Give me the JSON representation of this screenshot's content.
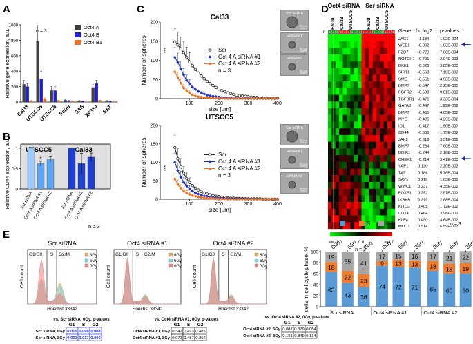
{
  "panelA": {
    "letter": "A",
    "n_label": "n = 3",
    "ylabel": "Relative gene expression, a.u.",
    "ylim": [
      0,
      1000
    ],
    "yticks": [
      "0",
      "200",
      "400",
      "600",
      "800",
      "1000"
    ],
    "chart_data": {
      "type": "bar",
      "categories": [
        "Cal33",
        "UTSCC5",
        "UTSCC8",
        "FaDu",
        "SAS",
        "XF354",
        "SAT"
      ],
      "series": [
        {
          "name": "Oct4 A",
          "color": "#404040",
          "values": [
            230,
            790,
            150,
            25,
            15,
            190,
            15
          ],
          "errors": [
            50,
            200,
            50,
            10,
            5,
            40,
            5
          ]
        },
        {
          "name": "Oct4 B",
          "color": "#1f1fd0",
          "values": [
            200,
            300,
            150,
            15,
            10,
            240,
            10
          ],
          "errors": [
            40,
            100,
            50,
            5,
            5,
            40,
            5
          ]
        },
        {
          "name": "Oct4 B1",
          "color": "#f07020",
          "values": [
            15,
            40,
            20,
            10,
            5,
            20,
            5
          ],
          "errors": [
            5,
            15,
            5,
            5,
            5,
            5,
            5
          ]
        }
      ]
    }
  },
  "panelB": {
    "letter": "B",
    "ylabel": "Relative CD44 expression, a.u.",
    "n_label": "n ≥ 3",
    "groups": [
      "UTSCC5",
      "Cal33"
    ],
    "yticks": [
      "0",
      "0.5",
      "1"
    ],
    "chart_data": {
      "type": "bar",
      "categories": [
        "Scr siRNA",
        "Oct4 A siRNA #1",
        "Oct4 A siRNA #2",
        "Scr siRNA",
        "Oct4 A siRNA #1",
        "Oct4 A siRNA #2"
      ],
      "values": [
        1.0,
        0.62,
        0.73,
        1.0,
        0.62,
        0.78
      ],
      "errors": [
        0.0,
        0.06,
        0.06,
        0.0,
        0.25,
        0.1
      ],
      "colors": [
        "#9ecbff",
        "#5aa6f2",
        "#5aa6f2",
        "#1f3fd0",
        "#1f3fd0",
        "#1f3fd0"
      ],
      "significance": [
        "",
        "*",
        "",
        "",
        "*",
        "*"
      ],
      "ylim": [
        0,
        1.1
      ]
    }
  },
  "panelC": {
    "letter": "C",
    "plots": [
      {
        "title": "Cal33",
        "ylabel": "Number of spheres",
        "xlabel": "size [µm]",
        "n_label": "n = 3",
        "sig": "***",
        "ylim": [
          0,
          200
        ],
        "yticks": [
          "0",
          "50",
          "100",
          "150",
          "200"
        ],
        "xticks": [
          "100",
          "200",
          "300",
          "400"
        ],
        "legend": [
          "Scr",
          "Oct 4 A siRNA #1",
          "Oct 4 A siRNA #2"
        ],
        "chart_data": {
          "type": "line",
          "x": [
            50,
            60,
            70,
            80,
            90,
            100,
            110,
            120,
            130,
            140,
            150,
            160,
            170,
            180,
            190,
            200,
            210,
            220,
            230,
            240,
            250,
            260,
            270,
            280,
            290,
            300,
            310,
            320,
            330,
            340,
            350,
            360,
            370,
            380,
            390,
            400
          ],
          "series": [
            {
              "name": "Scr",
              "color": "#222222",
              "values": [
                148,
                140,
                130,
                120,
                108,
                96,
                86,
                76,
                67,
                59,
                52,
                45,
                39,
                34,
                29,
                25,
                21,
                18,
                15,
                13,
                11,
                9,
                8,
                7,
                6,
                5,
                4,
                3,
                3,
                2,
                2,
                2,
                1,
                1,
                1,
                1
              ]
            },
            {
              "name": "Oct 4 A siRNA #1",
              "color": "#1f2fd0",
              "values": [
                108,
                95,
                78,
                62,
                48,
                38,
                30,
                24,
                19,
                15,
                12,
                9,
                7,
                6,
                5,
                4,
                3,
                2,
                2,
                2,
                1,
                1,
                1,
                1,
                1,
                1,
                0,
                0,
                0,
                0,
                0,
                0,
                0,
                0,
                0,
                0
              ]
            },
            {
              "name": "Oct 4 A siRNA #2",
              "color": "#f07020",
              "values": [
                70,
                55,
                40,
                28,
                20,
                14,
                10,
                7,
                5,
                4,
                3,
                2,
                2,
                1,
                1,
                1,
                1,
                0,
                0,
                0,
                0,
                0,
                0,
                0,
                0,
                0,
                0,
                0,
                0,
                0,
                0,
                0,
                0,
                0,
                0,
                0
              ]
            }
          ]
        },
        "images": [
          "Scr siRNA",
          "siRNA #1",
          "siRNA #2"
        ],
        "scale": "50 µm"
      },
      {
        "title": "UTSCC5",
        "ylabel": "Number of spheres",
        "xlabel": "size [µm]",
        "n_label": "n = 3",
        "sig": "***",
        "ylim": [
          0,
          200
        ],
        "yticks": [
          "0",
          "50",
          "100",
          "150",
          "200"
        ],
        "xticks": [
          "100",
          "200",
          "300",
          "400"
        ],
        "legend": [
          "Scr",
          "Oct 4 A siRNA #1",
          "Oct 4 A siRNA #2"
        ],
        "chart_data": {
          "type": "line",
          "x": [
            50,
            60,
            70,
            80,
            90,
            100,
            110,
            120,
            130,
            140,
            150,
            160,
            170,
            180,
            190,
            200,
            210,
            220,
            230,
            240,
            250,
            260,
            270,
            280,
            290,
            300,
            310,
            320,
            330,
            340,
            350,
            360,
            370,
            380,
            390,
            400
          ],
          "series": [
            {
              "name": "Scr",
              "color": "#222222",
              "values": [
                140,
                110,
                88,
                70,
                56,
                45,
                37,
                30,
                25,
                21,
                17,
                14,
                12,
                10,
                8,
                7,
                6,
                5,
                4,
                3,
                3,
                2,
                2,
                2,
                1,
                1,
                1,
                1,
                1,
                1,
                0,
                0,
                0,
                0,
                0,
                0
              ]
            },
            {
              "name": "Oct 4 A siRNA #1",
              "color": "#1f2fd0",
              "values": [
                100,
                78,
                60,
                46,
                36,
                28,
                22,
                17,
                14,
                11,
                9,
                7,
                6,
                5,
                4,
                3,
                3,
                2,
                2,
                1,
                1,
                1,
                1,
                1,
                1,
                0,
                0,
                0,
                0,
                0,
                0,
                0,
                0,
                0,
                0,
                0
              ]
            },
            {
              "name": "Oct 4 A siRNA #2",
              "color": "#f07020",
              "values": [
                55,
                40,
                30,
                22,
                17,
                13,
                10,
                8,
                6,
                5,
                4,
                3,
                2,
                2,
                1,
                1,
                1,
                1,
                0,
                0,
                0,
                0,
                0,
                0,
                0,
                0,
                0,
                0,
                0,
                0,
                0,
                0,
                0,
                0,
                0,
                0
              ]
            }
          ]
        },
        "images": [
          "Scr siRNA",
          "siRNA #1",
          "siRNA #2"
        ],
        "scale": "50 µm"
      }
    ]
  },
  "panelD": {
    "letter": "D",
    "header1": "Oct4 siRNA",
    "header2": "Scr siRNA",
    "cols": [
      "FaDu",
      "Cal33",
      "UTSCC5",
      "FaDu",
      "Cal33",
      "UTSCC5"
    ],
    "rep_label": "n",
    "col_headers": [
      "Gene",
      "f.c.log2",
      "p-values"
    ],
    "genes": [
      {
        "gene": "JAG1",
        "fc": "-1.184",
        "p": "1.02E-004"
      },
      {
        "gene": "WEE1",
        "fc": "-0.892",
        "p": "1.83E-003",
        "arrow": true
      },
      {
        "gene": "FZD7",
        "fc": "-0.723",
        "p": "7.66E-004"
      },
      {
        "gene": "NOTCH1",
        "fc": "-0.701",
        "p": "2.04E-003"
      },
      {
        "gene": "DKK1",
        "fc": "-0.626",
        "p": "3.85E-003"
      },
      {
        "gene": "SIRT1",
        "fc": "-0.563",
        "p": "7.10E-003"
      },
      {
        "gene": "SMO",
        "fc": "-0.551",
        "p": "4.93E-003"
      },
      {
        "gene": "BMP7",
        "fc": "-0.547",
        "p": "2.25E-005"
      },
      {
        "gene": "FGFR2",
        "fc": "-0.503",
        "p": "9.81E-003"
      },
      {
        "gene": "TGFBR1",
        "fc": "-0.476",
        "p": "3.33E-004"
      },
      {
        "gene": "GATA3",
        "fc": "-0.447",
        "p": "1.29E-002"
      },
      {
        "gene": "BMP7",
        "fc": "-0.435",
        "p": "4.05E-002"
      },
      {
        "gene": "MYC",
        "fc": "-0.426",
        "p": "4.29E-002"
      },
      {
        "gene": "ID1",
        "fc": "-0.417",
        "p": "1.50E-007"
      },
      {
        "gene": "CD44",
        "fc": "-0.336",
        "p": "1.75E-002"
      },
      {
        "gene": "JAK2",
        "fc": "-0.318",
        "p": "3.51E-002"
      },
      {
        "gene": "BMP7",
        "fc": "-0.264",
        "p": "7.60E-003"
      },
      {
        "gene": "DDIR1",
        "fc": "-0.244",
        "p": "2.16E-003"
      },
      {
        "gene": "CHEK1",
        "fc": "-0.214",
        "p": "3.41E-003",
        "arrow": true
      },
      {
        "gene": "YAP1",
        "fc": "0.120",
        "p": "2.20E-002"
      },
      {
        "gene": "TAZ",
        "fc": "0.186",
        "p": "5.76E-004"
      },
      {
        "gene": "SAV1",
        "fc": "0.218",
        "p": "1.63E-002"
      },
      {
        "gene": "WWC1",
        "fc": "0.237",
        "p": "4.35E-002"
      },
      {
        "gene": "FOXP1",
        "fc": "0.292",
        "p": "2.97E-002"
      },
      {
        "gene": "IKBKB",
        "fc": "0.319",
        "p": "2.68E-004"
      },
      {
        "gene": "KITLG",
        "fc": "0.405",
        "p": "1.72E-002"
      },
      {
        "gene": "CD24",
        "fc": "0.464",
        "p": "3.98E-002"
      },
      {
        "gene": "KLF4",
        "fc": "0.490",
        "p": "4.64E-002"
      },
      {
        "gene": "MUC1",
        "fc": "0.514",
        "p": "6.59E-003"
      }
    ],
    "scale_low": "<= -1.0",
    "scale_mid": "0.0",
    "scale_high": ">=1.0",
    "n_label": "n = 3"
  },
  "panelE": {
    "letter": "E",
    "histograms": [
      {
        "title": "Scr siRNA"
      },
      {
        "title": "Oct4 siRNA #1"
      },
      {
        "title": "Oct4 siRNA #2"
      }
    ],
    "hist_ylabel": "Cell count",
    "hist_xlabel": "Hoechst 33342",
    "phase_labels": [
      "G1/G0",
      "S",
      "G2/M"
    ],
    "legend": [
      {
        "label": "8Gy",
        "color": "#e8b060"
      },
      {
        "label": "6Gy",
        "color": "#7fd8e0"
      },
      {
        "label": "0Gy",
        "color": "#f08080"
      }
    ],
    "tables": [
      {
        "title": "vs. Scr siRNA, 0Gy, p-values",
        "cols": [
          "G1",
          "S",
          "G2"
        ],
        "rows": [
          {
            "label": "Scr siRNA, 6Gy",
            "vals": [
              "0.015",
              "0.090",
              "0.008"
            ]
          },
          {
            "label": "Scr siRNA, 8Gy",
            "vals": [
              "0.001",
              "0.017",
              "0.000"
            ]
          }
        ]
      },
      {
        "title": "vs. Oct4 siRNA #1, 0Gy, p-values",
        "cols": [
          "G1",
          "S",
          "G2"
        ],
        "rows": [
          {
            "label": "Oct4 siRNA #1, 6Gy",
            "vals": [
              "0.342",
              "0.493",
              "0.485"
            ]
          },
          {
            "label": "Oct4 siRNA #1, 8Gy",
            "vals": [
              "0.071",
              "0.487",
              "0.262"
            ]
          }
        ]
      },
      {
        "title": "vs. Oct4 siRNA #2, 0Gy, p-values",
        "cols": [
          "G1",
          "S",
          "G2"
        ],
        "rows": [
          {
            "label": "Oct4 siRNA #2, 6Gy",
            "vals": [
              "0.087",
              "0.379",
              "0.084"
            ]
          },
          {
            "label": "Oct4 siRNA #2, 8Gy",
            "vals": [
              "0.191",
              "0.849",
              "0.134"
            ]
          }
        ]
      }
    ],
    "stacked": {
      "ylabel": "cells in cell cycle phase, %",
      "n_label": "n = 3",
      "legend": [
        {
          "label": "G1",
          "color": "#5b9bd5"
        },
        {
          "label": "S",
          "color": "#ed7d31"
        },
        {
          "label": "G2",
          "color": "#a6a6a6"
        }
      ],
      "yticks": [
        "0",
        "20",
        "40",
        "60",
        "80",
        "100"
      ],
      "dose_labels": [
        "0Gy",
        "6Gy",
        "8Gy",
        "0Gy",
        "6Gy",
        "8Gy",
        "0Gy",
        "6Gy",
        "8Gy"
      ],
      "group_labels": [
        "Scr siRNA",
        "Oct4 siRNA #1",
        "Oct4 siRNA #2"
      ],
      "chart_data": {
        "type": "bar",
        "categories": [
          "Scr 0Gy",
          "Scr 6Gy",
          "Scr 8Gy",
          "#1 0Gy",
          "#1 6Gy",
          "#1 8Gy",
          "#2 0Gy",
          "#2 6Gy",
          "#2 8Gy"
        ],
        "series": [
          {
            "name": "G1",
            "values": [
              63,
              43,
              36,
              74,
              72,
              71,
              65,
              60,
              60
            ]
          },
          {
            "name": "S",
            "values": [
              18,
              22,
              23,
              9,
              13,
              13,
              18,
              18,
              19
            ]
          },
          {
            "name": "G2",
            "values": [
              19,
              35,
              41,
              17,
              15,
              16,
              17,
              21,
              22
            ]
          }
        ]
      }
    }
  }
}
